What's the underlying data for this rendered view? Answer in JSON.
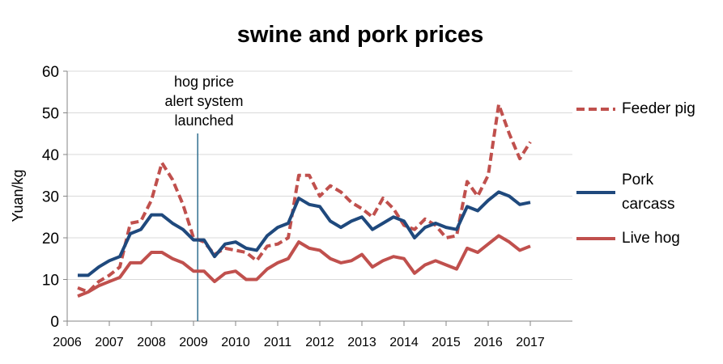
{
  "chart_data": {
    "type": "line",
    "title": "swine and pork prices",
    "y_label": "Yuan/kg",
    "x": [
      2006.25,
      2006.5,
      2006.75,
      2007,
      2007.25,
      2007.5,
      2007.75,
      2008,
      2008.25,
      2008.5,
      2008.75,
      2009,
      2009.25,
      2009.5,
      2009.75,
      2010,
      2010.25,
      2010.5,
      2010.75,
      2011,
      2011.25,
      2011.5,
      2011.75,
      2012,
      2012.25,
      2012.5,
      2012.75,
      2013,
      2013.25,
      2013.5,
      2013.75,
      2014,
      2014.25,
      2014.5,
      2014.75,
      2015,
      2015.25,
      2015.5,
      2015.75,
      2016,
      2016.25,
      2016.5,
      2016.75,
      2017
    ],
    "series": [
      {
        "name": "Feeder pig",
        "color": "#c0504d",
        "dash": true,
        "values": [
          8,
          7,
          9.5,
          11,
          13,
          23.5,
          24,
          29,
          38,
          34,
          28,
          20,
          19,
          16,
          17.5,
          17,
          16.5,
          14.5,
          18,
          18.5,
          20,
          35,
          35,
          30,
          32.5,
          31,
          28.5,
          27,
          25,
          29.5,
          27,
          23,
          22,
          24.5,
          23,
          20,
          20.5,
          33.5,
          30,
          35,
          52,
          45,
          39,
          43
        ]
      },
      {
        "name": "Pork carcass",
        "color": "#1f497d",
        "dash": false,
        "values": [
          11,
          11,
          13,
          14.5,
          15.5,
          21,
          22,
          25.5,
          25.5,
          23.5,
          22,
          19.5,
          19.5,
          15.5,
          18.5,
          19,
          17.5,
          17,
          20.5,
          22.5,
          23.5,
          29.5,
          28,
          27.5,
          24,
          22.5,
          24,
          25,
          22,
          23.5,
          25,
          24,
          20,
          22.5,
          23.5,
          22.5,
          22,
          27.5,
          26.5,
          29,
          31,
          30,
          28,
          28.5
        ]
      },
      {
        "name": "Live hog",
        "color": "#c0504d",
        "dash": false,
        "values": [
          6,
          7,
          8.5,
          9.5,
          10.5,
          14,
          14,
          16.5,
          16.5,
          15,
          14,
          12,
          12,
          9.5,
          11.5,
          12,
          10,
          10,
          12.5,
          14,
          15,
          19,
          17.5,
          17,
          15,
          14,
          14.5,
          16,
          13,
          14.5,
          15.5,
          15,
          11.5,
          13.5,
          14.5,
          13.5,
          12.5,
          17.5,
          16.5,
          18.5,
          20.5,
          19,
          17,
          18
        ]
      }
    ],
    "xlim": [
      2006,
      2018
    ],
    "xticks": [
      2006,
      2007,
      2008,
      2009,
      2010,
      2011,
      2012,
      2013,
      2014,
      2015,
      2016,
      2017
    ],
    "ylim": [
      0,
      60
    ],
    "yticks": [
      0,
      10,
      20,
      30,
      40,
      50,
      60
    ],
    "grid": true,
    "annotation": {
      "x": 2009.1,
      "lines": [
        "hog price",
        "alert system",
        "launched"
      ]
    }
  }
}
